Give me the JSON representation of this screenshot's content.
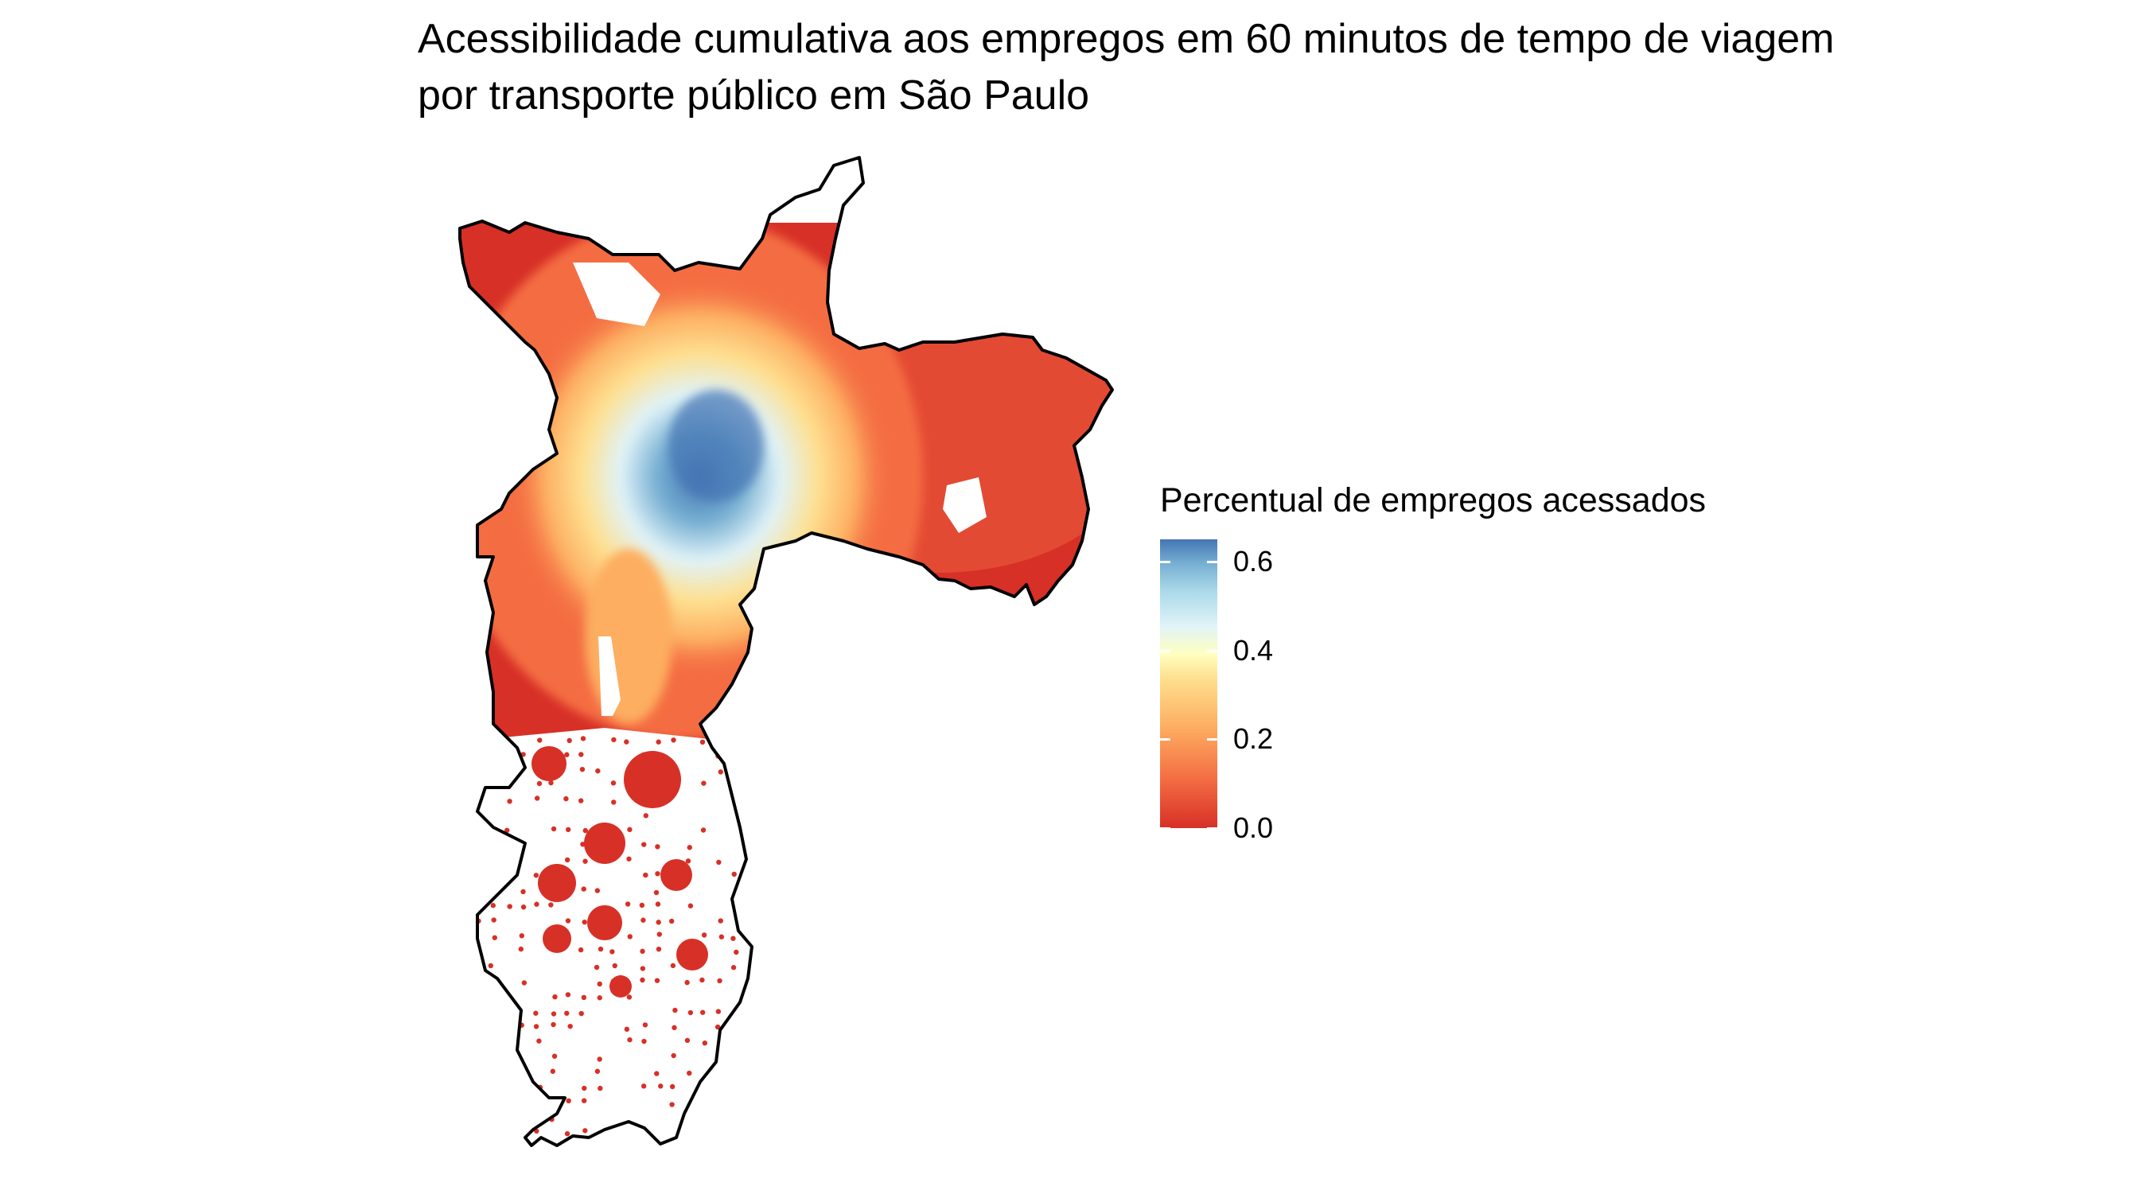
{
  "title": {
    "line1": "Acessibilidade cumulativa aos empregos em 60 minutos de tempo de viagem",
    "line2": "por transporte público em São Paulo"
  },
  "legend": {
    "title": "Percentual de empregos acessados",
    "ticks": [
      {
        "value": 0.6,
        "label": "0.6"
      },
      {
        "value": 0.4,
        "label": "0.4"
      },
      {
        "value": 0.2,
        "label": "0.2"
      },
      {
        "value": 0.0,
        "label": "0.0"
      }
    ],
    "range": [
      0.0,
      0.65
    ],
    "colors": [
      "#d73027",
      "#f46d43",
      "#fdae61",
      "#fee090",
      "#ffffbf",
      "#e0f3f8",
      "#abd9e9",
      "#74add1",
      "#4575b4"
    ]
  },
  "map": {
    "region": "São Paulo",
    "boundary_color": "#000000"
  }
}
